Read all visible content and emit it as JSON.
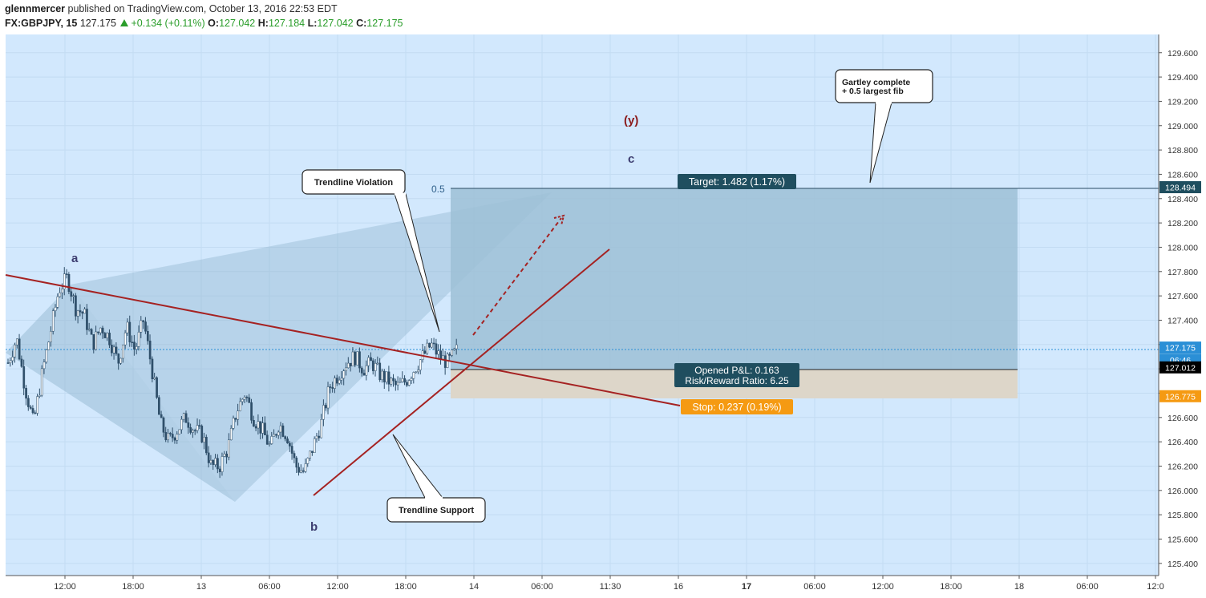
{
  "header": {
    "author": "glennmercer",
    "published": "published on TradingView.com, October 13, 2016 22:53 EDT",
    "symbol": "FX:GBPJPY, 15",
    "last": "127.175",
    "change": "+0.134 (+0.11%)",
    "o_label": "O:",
    "o_value": "127.042",
    "h_label": "H:",
    "h_value": "127.184",
    "l_label": "L:",
    "l_value": "127.042",
    "c_label": "C:",
    "c_value": "127.175"
  },
  "chart_data": {
    "type": "candlestick",
    "symbol": "FX:GBPJPY",
    "interval": "15",
    "ylim": [
      125.3,
      129.75
    ],
    "y_ticks": [
      "125.400",
      "125.600",
      "125.800",
      "126.000",
      "126.200",
      "126.400",
      "126.600",
      "126.800",
      "127.000",
      "127.200",
      "127.400",
      "127.600",
      "127.800",
      "128.000",
      "128.200",
      "128.400",
      "128.600",
      "128.800",
      "129.000",
      "129.200",
      "129.400",
      "129.600"
    ],
    "x_ticks": [
      "12:00",
      "18:00",
      "13",
      "06:00",
      "12:00",
      "18:00",
      "14",
      "06:00",
      "11:30",
      "16",
      "17",
      "06:00",
      "12:00",
      "18:00",
      "18",
      "06:00",
      "12:0"
    ],
    "x_tick_bold": [
      false,
      false,
      false,
      false,
      false,
      false,
      false,
      false,
      false,
      false,
      true,
      false,
      false,
      false,
      false,
      false,
      false
    ],
    "price_labels": [
      {
        "value": "128.494",
        "price": 128.494,
        "color": "#1f4e5f"
      },
      {
        "value": "127.175",
        "price": 127.175,
        "color": "#2b8fd6"
      },
      {
        "value": "06:46",
        "price": 127.075,
        "color": "#2b8fd6"
      },
      {
        "value": "127.012",
        "price": 127.012,
        "color": "#000000"
      },
      {
        "value": "126.775",
        "price": 126.775,
        "color": "#f59a12"
      }
    ],
    "path_closes": [
      127.05,
      127.25,
      126.85,
      126.55,
      126.95,
      127.3,
      127.65,
      127.75,
      127.5,
      127.45,
      127.2,
      127.35,
      127.25,
      127.05,
      127.35,
      127.15,
      127.4,
      127.0,
      126.55,
      126.4,
      126.5,
      126.6,
      126.5,
      126.45,
      126.2,
      126.2,
      126.35,
      126.65,
      126.8,
      126.6,
      126.5,
      126.35,
      126.55,
      126.45,
      126.2,
      126.15,
      126.35,
      126.55,
      126.85,
      126.95,
      127.05,
      127.1,
      127.0,
      127.05,
      126.95,
      126.9,
      126.85,
      126.9,
      127.0,
      127.1,
      127.2,
      127.1,
      127.05,
      127.15
    ],
    "position": {
      "entry": 127.012,
      "target": 128.494,
      "stop": 126.775,
      "target_label": "Target: 1.482 (1.17%)",
      "pnl_label": "Opened P&L: 0.163",
      "rr_label": "Risk/Reward Ratio: 6.25",
      "stop_label": "Stop: 0.237 (0.19%)"
    },
    "fib_label": "0.5",
    "wave_labels": {
      "a": "a",
      "b": "b",
      "c": "c",
      "y": "(y)"
    },
    "callouts": {
      "violation": "Trendline Violation",
      "support": "Trendline Support",
      "gartley_line1": "Gartley complete",
      "gartley_line2": "+ 0.5 largest fib"
    },
    "colors": {
      "background": "#d2e8fd",
      "pattern_fill": "#8fb3cc",
      "target_zone": "#9ebfd6",
      "stop_zone": "#ddd6c9",
      "trendline": "#a52222",
      "wave_label": "#3d3d70",
      "wave_y": "#8b1a1a",
      "candle_up": "#ffffff",
      "candle_down": "#2f4f6a"
    }
  }
}
